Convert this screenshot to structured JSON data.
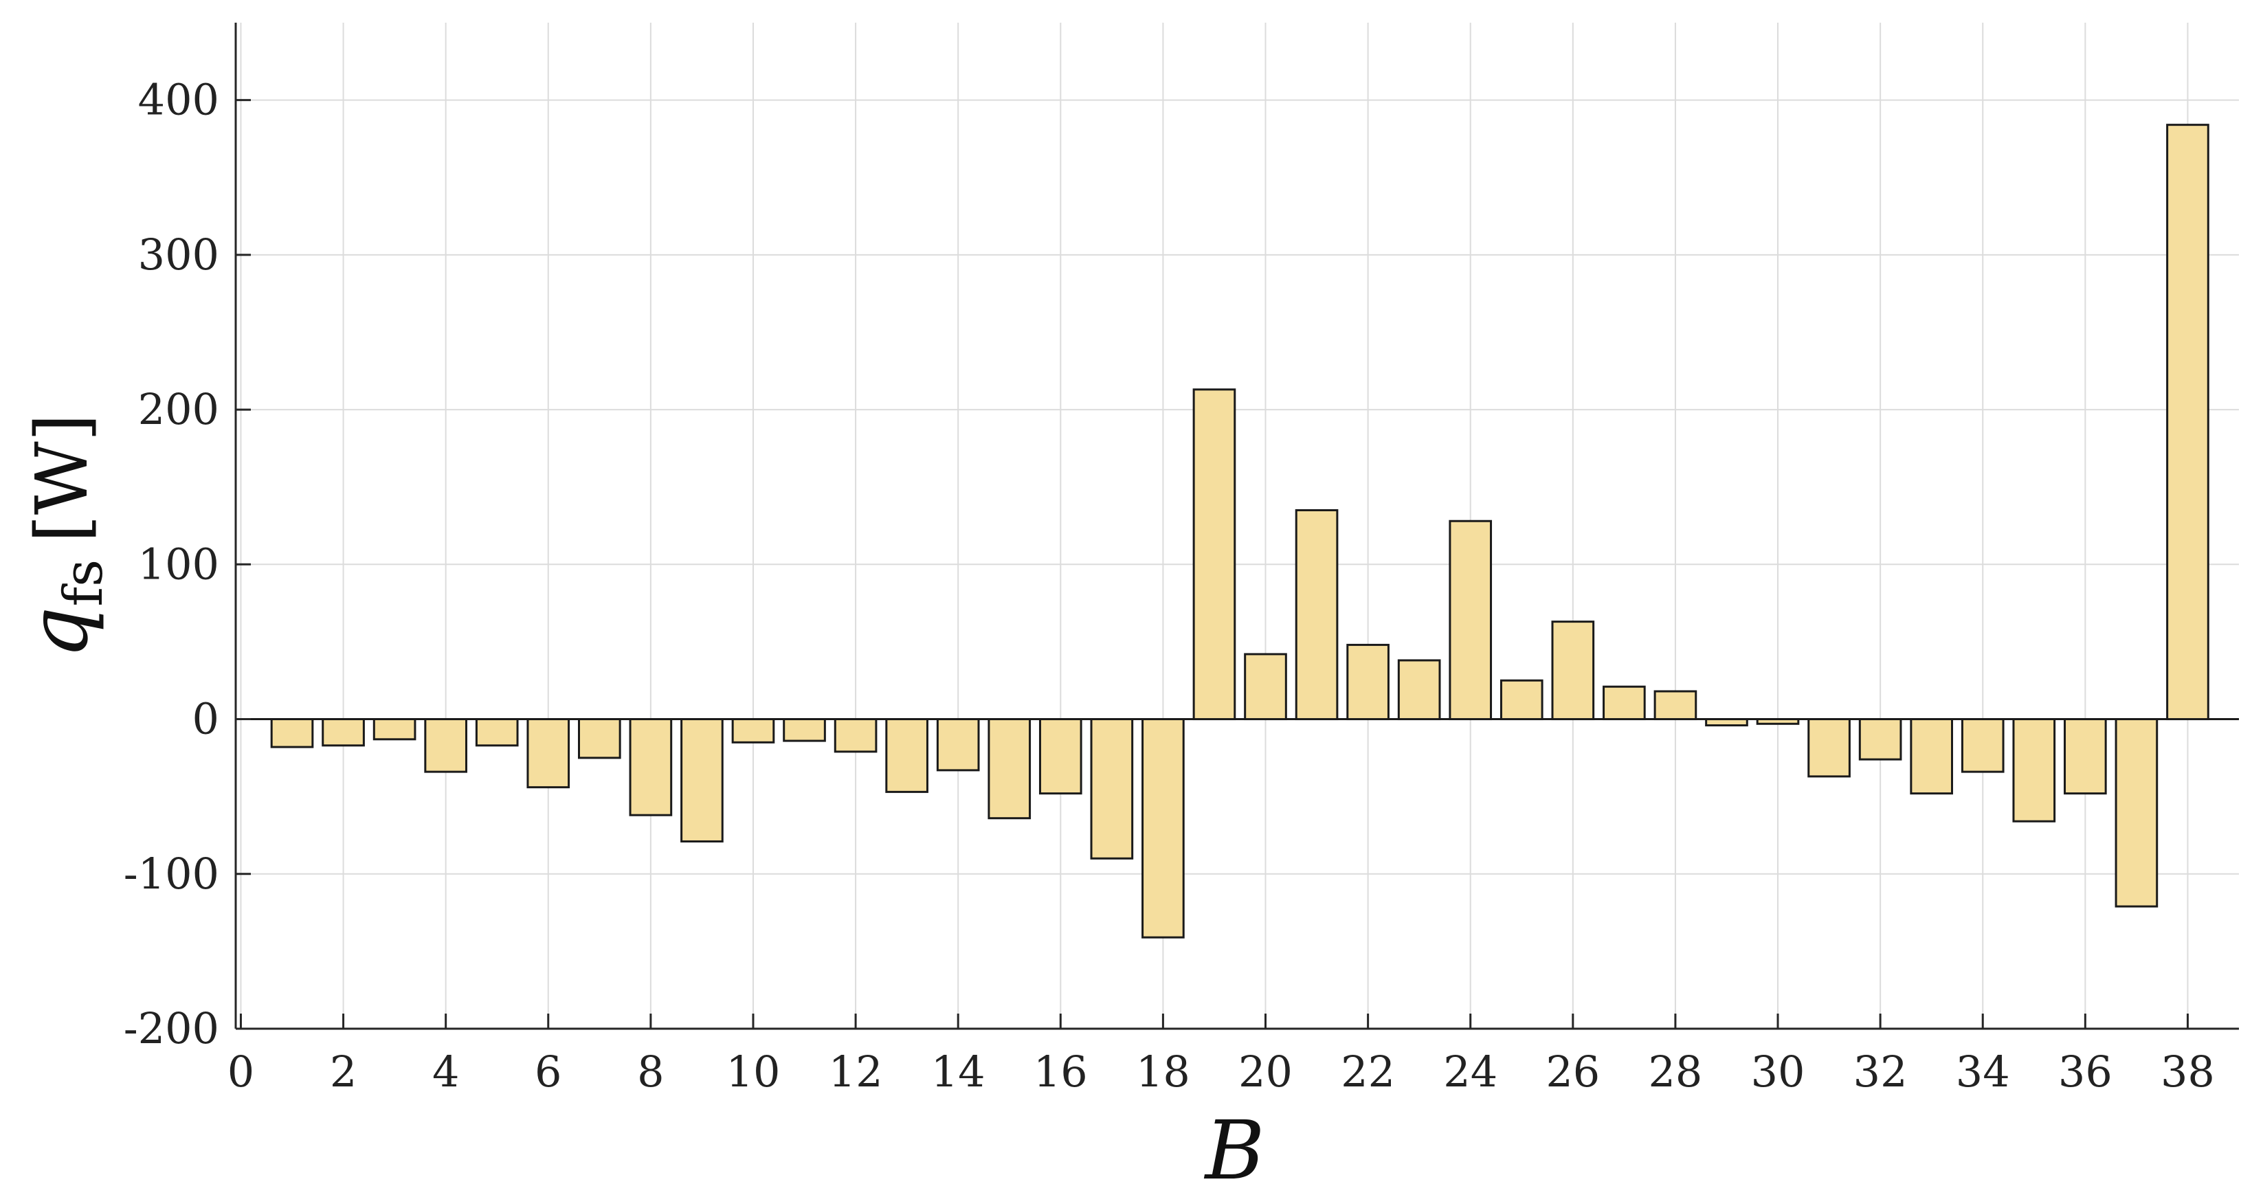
{
  "chart_data": {
    "type": "bar",
    "xlabel": "B",
    "ylabel": {
      "main": "q",
      "subscript": "fs",
      "unit": "[W]"
    },
    "x": [
      1,
      2,
      3,
      4,
      5,
      6,
      7,
      8,
      9,
      10,
      11,
      12,
      13,
      14,
      15,
      16,
      17,
      18,
      19,
      20,
      21,
      22,
      23,
      24,
      25,
      26,
      27,
      28,
      29,
      30,
      31,
      32,
      33,
      34,
      35,
      36,
      37,
      38
    ],
    "values": [
      -18,
      -17,
      -13,
      -34,
      -17,
      -44,
      -25,
      -62,
      -79,
      -15,
      -14,
      -21,
      -47,
      -33,
      -64,
      -48,
      -90,
      -141,
      213,
      42,
      135,
      48,
      38,
      128,
      25,
      63,
      21,
      18,
      -4,
      -3,
      -37,
      -26,
      -48,
      -34,
      -66,
      -48,
      -121,
      384
    ],
    "xlim": [
      -0.1,
      39
    ],
    "ylim": [
      -200,
      450
    ],
    "xticks": [
      0,
      2,
      4,
      6,
      8,
      10,
      12,
      14,
      16,
      18,
      20,
      22,
      24,
      26,
      28,
      30,
      32,
      34,
      36,
      38
    ],
    "xtick_labels": [
      "0",
      "2",
      "4",
      "6",
      "8",
      "10",
      "12",
      "14",
      "16",
      "18",
      "20",
      "22",
      "24",
      "26",
      "28",
      "30",
      "32",
      "34",
      "36",
      "38"
    ],
    "yticks": [
      -200,
      -100,
      0,
      100,
      200,
      300,
      400
    ],
    "ytick_labels": [
      "-200",
      "-100",
      "0",
      "100",
      "200",
      "300",
      "400"
    ],
    "grid": true,
    "colors": {
      "bar_fill": "#F5DE9E",
      "bar_edge": "#1a1a1a",
      "grid": "#dcdcdc",
      "axis": "#262626"
    }
  }
}
